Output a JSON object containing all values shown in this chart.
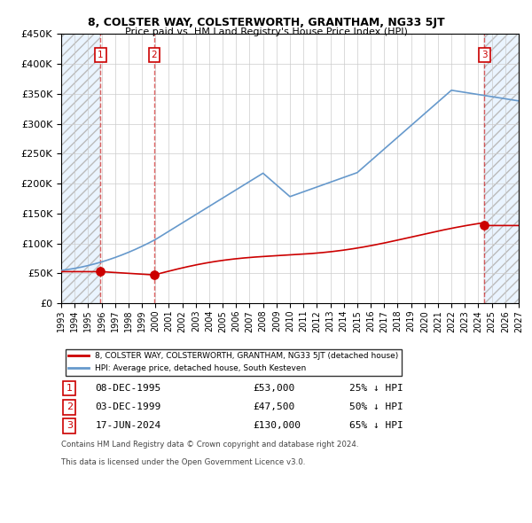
{
  "title": "8, COLSTER WAY, COLSTERWORTH, GRANTHAM, NG33 5JT",
  "subtitle": "Price paid vs. HM Land Registry's House Price Index (HPI)",
  "legend_line1": "8, COLSTER WAY, COLSTERWORTH, GRANTHAM, NG33 5JT (detached house)",
  "legend_line2": "HPI: Average price, detached house, South Kesteven",
  "footer1": "Contains HM Land Registry data © Crown copyright and database right 2024.",
  "footer2": "This data is licensed under the Open Government Licence v3.0.",
  "transactions": [
    {
      "num": 1,
      "date": "08-DEC-1995",
      "price": 53000,
      "pct": "25%",
      "dir": "↓",
      "x_year": 1995.92
    },
    {
      "num": 2,
      "date": "03-DEC-1999",
      "price": 47500,
      "pct": "50%",
      "dir": "↓",
      "x_year": 1999.92
    },
    {
      "num": 3,
      "date": "17-JUN-2024",
      "price": 130000,
      "pct": "65%",
      "dir": "↓",
      "x_year": 2024.46
    }
  ],
  "hpi_color": "#6699cc",
  "price_color": "#cc0000",
  "shade_color": "#ddeeff",
  "xmin": 1993,
  "xmax": 2027,
  "ymin": 0,
  "ymax": 450000,
  "yticks": [
    0,
    50000,
    100000,
    150000,
    200000,
    250000,
    300000,
    350000,
    400000,
    450000
  ],
  "xticks": [
    1993,
    1994,
    1995,
    1996,
    1997,
    1998,
    1999,
    2000,
    2001,
    2002,
    2003,
    2004,
    2005,
    2006,
    2007,
    2008,
    2009,
    2010,
    2011,
    2012,
    2013,
    2014,
    2015,
    2016,
    2017,
    2018,
    2019,
    2020,
    2021,
    2022,
    2023,
    2024,
    2025,
    2026,
    2027
  ]
}
